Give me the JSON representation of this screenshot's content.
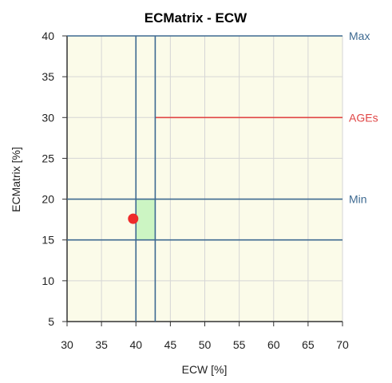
{
  "chart_data": {
    "type": "scatter",
    "title": "ECMatrix - ECW",
    "xlabel": "ECW [%]",
    "ylabel": "ECMatrix [%]",
    "xlim": [
      30,
      70
    ],
    "ylim": [
      5,
      40
    ],
    "x_ticks": [
      "30",
      "35",
      "40",
      "45",
      "50",
      "55",
      "60",
      "65",
      "70"
    ],
    "y_ticks": [
      "5",
      "10",
      "15",
      "20",
      "25",
      "30",
      "35",
      "40"
    ],
    "grid": true,
    "point": {
      "x": 39.6,
      "y": 17.6,
      "color": "#ee2b2b"
    },
    "normal_range": {
      "x": [
        40,
        42.8
      ],
      "y": [
        15,
        20
      ],
      "color": "#ccf5c3"
    },
    "reference_lines": [
      {
        "label": "Max",
        "orientation": "horizontal",
        "value": 40,
        "color": "#3e6a91"
      },
      {
        "label": "AGEs",
        "orientation": "horizontal",
        "value": 30,
        "from_x": 42.8,
        "color": "#e04545"
      },
      {
        "label": "Min",
        "orientation": "horizontal",
        "value": 20,
        "color": "#3e6a91"
      },
      {
        "label": "",
        "orientation": "horizontal",
        "value": 15,
        "color": "#3e6a91"
      },
      {
        "label": "",
        "orientation": "vertical",
        "value": 40,
        "color": "#3e6a91"
      },
      {
        "label": "",
        "orientation": "vertical",
        "value": 42.8,
        "color": "#3e6a91"
      }
    ],
    "colors": {
      "plot_background": "#fbfbe9",
      "grid": "#d6d6d6",
      "axis": "#333333"
    }
  }
}
